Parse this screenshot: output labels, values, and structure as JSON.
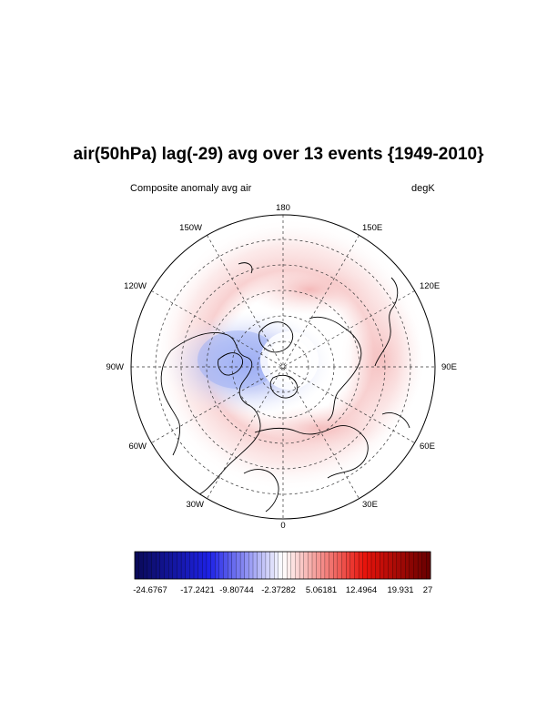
{
  "title": "air(50hPa) lag(-29) avg over 13 events {1949-2010}",
  "subtitle_left": "Composite anomaly avg air",
  "subtitle_right": "degK",
  "longitude_labels": {
    "top": "180",
    "bottom": "0",
    "left": "90W",
    "right": "90E",
    "w150": "150W",
    "e150": "150E",
    "w120": "120W",
    "e120": "120E",
    "w60": "60W",
    "e60": "60E",
    "w30": "30W",
    "e30": "30E"
  },
  "colorbar": {
    "min": -24.6767,
    "max": 27,
    "labels": [
      "-24.6767",
      "-17.2421",
      "-9.80744",
      "-2.37282",
      "5.06181",
      "12.4964",
      "19.931",
      "27"
    ],
    "colors": {
      "cold": "#0a0a5a",
      "blue": "#1e22e6",
      "white": "#ffffff",
      "red": "#e8140c",
      "dark_red": "#6a0000"
    }
  }
}
